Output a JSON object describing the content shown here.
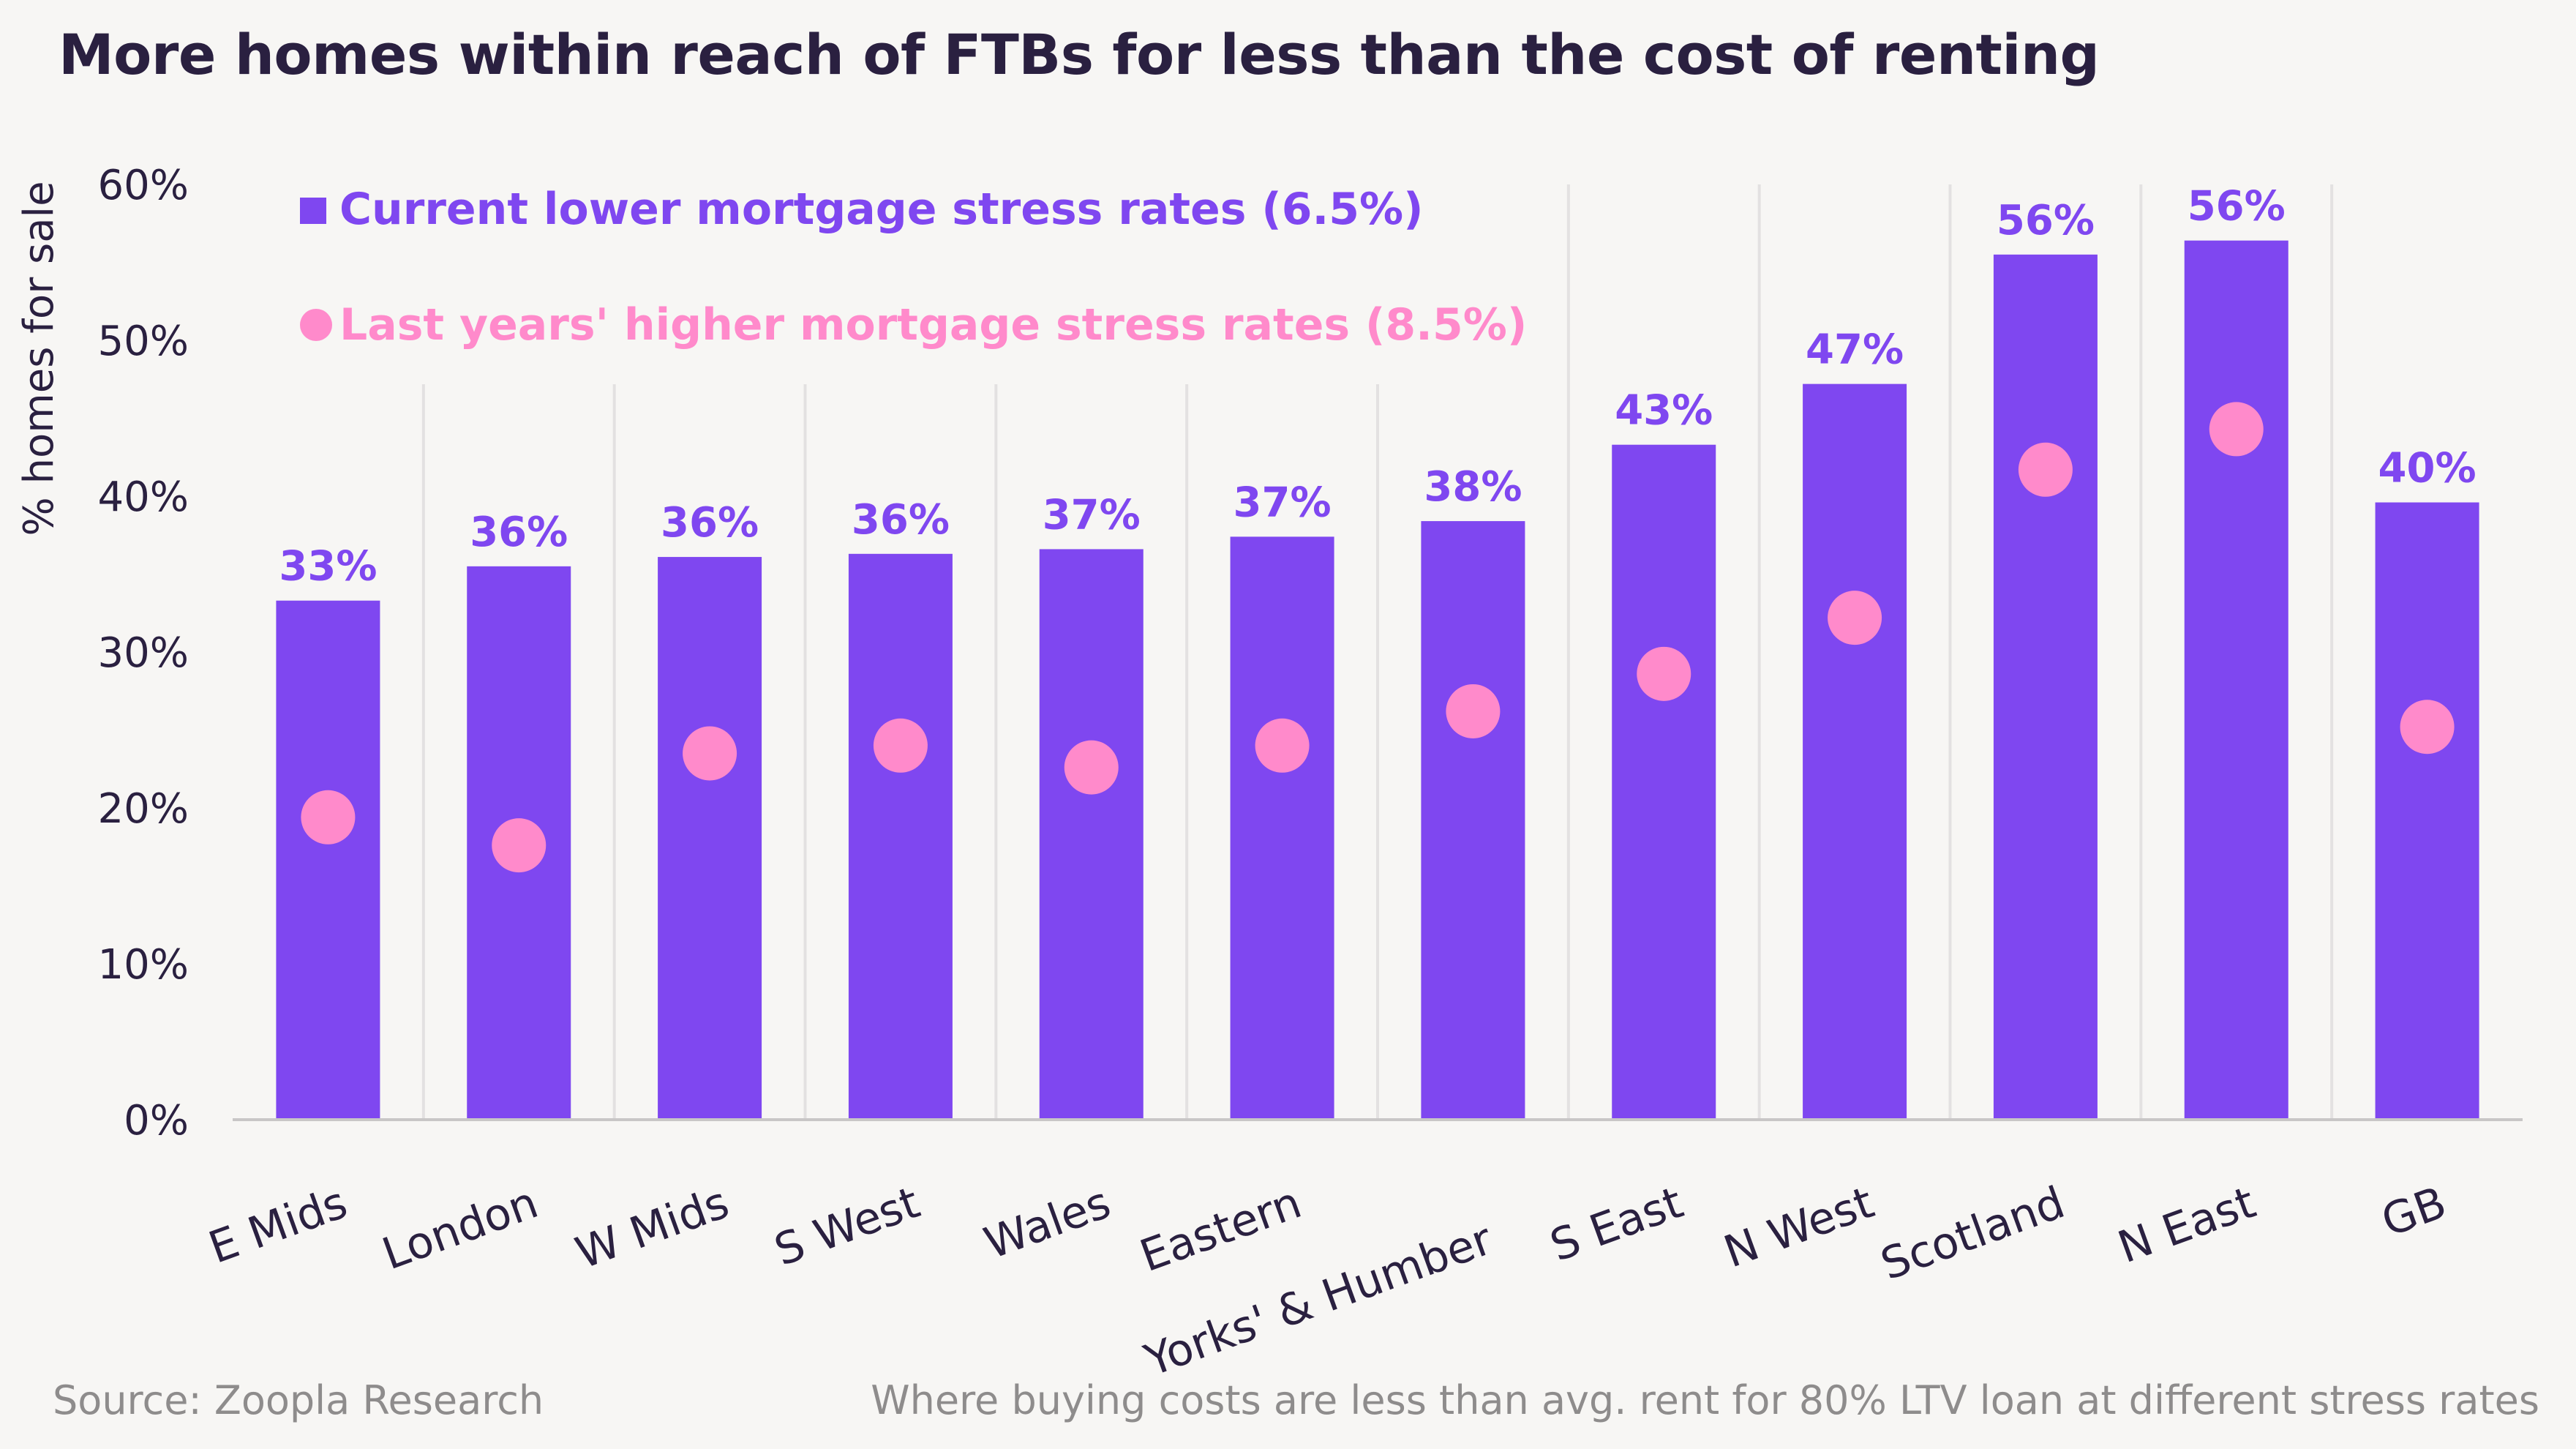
{
  "title": "More homes within reach of FTBs for less than the cost of renting",
  "source": "Source: Zoopla Research",
  "note": "Where buying costs are less than  avg. rent for 80% LTV loan at different stress rates",
  "colors": {
    "bar": "#7f47f0",
    "dot": "#ff8acb",
    "label": "#7f47f0",
    "grid": "#e3e1e1",
    "axis": "#c8c6c6"
  },
  "chart_data": {
    "type": "bar",
    "title": "More homes within reach of FTBs for less than the cost of renting",
    "xlabel": "",
    "ylabel": "% homes for sale",
    "ylim": [
      0,
      60
    ],
    "yticks": [
      "0%",
      "10%",
      "20%",
      "30%",
      "40%",
      "50%",
      "60%"
    ],
    "categories": [
      "E Mids",
      "London",
      "W Mids",
      "S West",
      "Wales",
      "Eastern",
      "Yorks' & Humber",
      "S East",
      "N West",
      "Scotland",
      "N East",
      "GB"
    ],
    "series": [
      {
        "name": "Current lower mortgage stress rates (6.5%)",
        "kind": "bar",
        "values": [
          33.3,
          35.5,
          36.1,
          36.3,
          36.6,
          37.4,
          38.4,
          43.3,
          47.2,
          55.5,
          56.4,
          39.6
        ],
        "labels": [
          "33%",
          "36%",
          "36%",
          "36%",
          "37%",
          "37%",
          "38%",
          "43%",
          "47%",
          "56%",
          "56%",
          "40%"
        ]
      },
      {
        "name": "Last years' higher mortgage stress rates (8.5%)",
        "kind": "dot",
        "values": [
          19.4,
          17.6,
          23.5,
          24.0,
          22.6,
          24.0,
          26.2,
          28.6,
          32.2,
          41.7,
          44.3,
          25.2
        ]
      }
    ],
    "legend_position": "top-left",
    "grid": true
  }
}
